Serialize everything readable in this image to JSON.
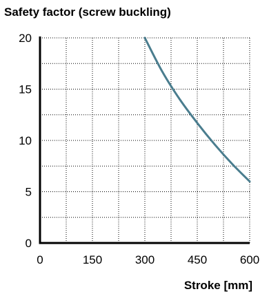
{
  "chart_data": {
    "type": "line",
    "title": "Safety factor (screw buckling)",
    "xlabel": "Stroke [mm]",
    "ylabel": "",
    "xlim": [
      0,
      600
    ],
    "ylim": [
      0,
      20
    ],
    "x_ticks": [
      0,
      150,
      300,
      450,
      600
    ],
    "y_ticks": [
      0,
      5,
      10,
      15,
      20
    ],
    "grid": "dotted",
    "series": [
      {
        "color": "#4a7d8e",
        "x": [
          300,
          350,
          400,
          450,
          500,
          550,
          600
        ],
        "y": [
          20.0,
          16.7,
          14.0,
          11.7,
          9.6,
          7.7,
          6.0
        ]
      }
    ]
  }
}
